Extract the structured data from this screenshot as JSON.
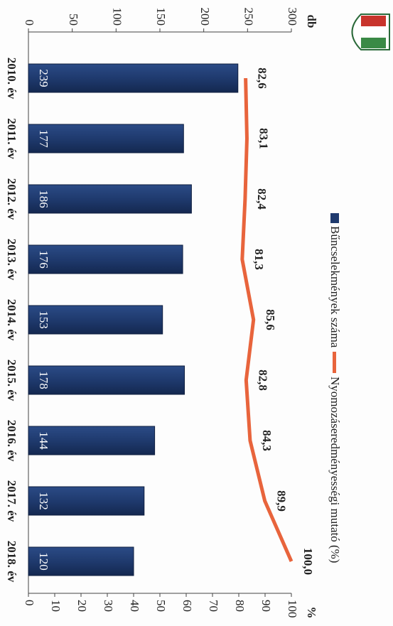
{
  "chart_data": {
    "type": "bar-line",
    "categories": [
      "2010. év",
      "2011. év",
      "2012. év",
      "2013. év",
      "2014. év",
      "2015. év",
      "2016. év",
      "2017. év",
      "2018. év"
    ],
    "series": [
      {
        "name": "Bűncselekmények száma",
        "color": "#1f3a6e",
        "type": "bar",
        "values": [
          239,
          177,
          186,
          176,
          153,
          178,
          144,
          132,
          120
        ]
      },
      {
        "name": "Nyomozáseredményességi mutató (%)",
        "color": "#e8643c",
        "type": "line",
        "axis": "y2",
        "values": [
          82.6,
          83.1,
          82.4,
          81.3,
          85.6,
          82.8,
          84.3,
          89.9,
          100.0
        ],
        "value_labels": [
          "82,6",
          "83,1",
          "82,4",
          "81,3",
          "85,6",
          "82,8",
          "84,3",
          "89,9",
          "100,0"
        ]
      }
    ],
    "ylabel": "db",
    "y2label": "%",
    "ylim": [
      0,
      300
    ],
    "yticks": [
      0,
      50,
      100,
      150,
      200,
      250,
      300
    ],
    "y2lim": [
      0,
      100
    ],
    "y2ticks": [
      0,
      10,
      20,
      30,
      40,
      50,
      60,
      70,
      80,
      90,
      100
    ]
  }
}
